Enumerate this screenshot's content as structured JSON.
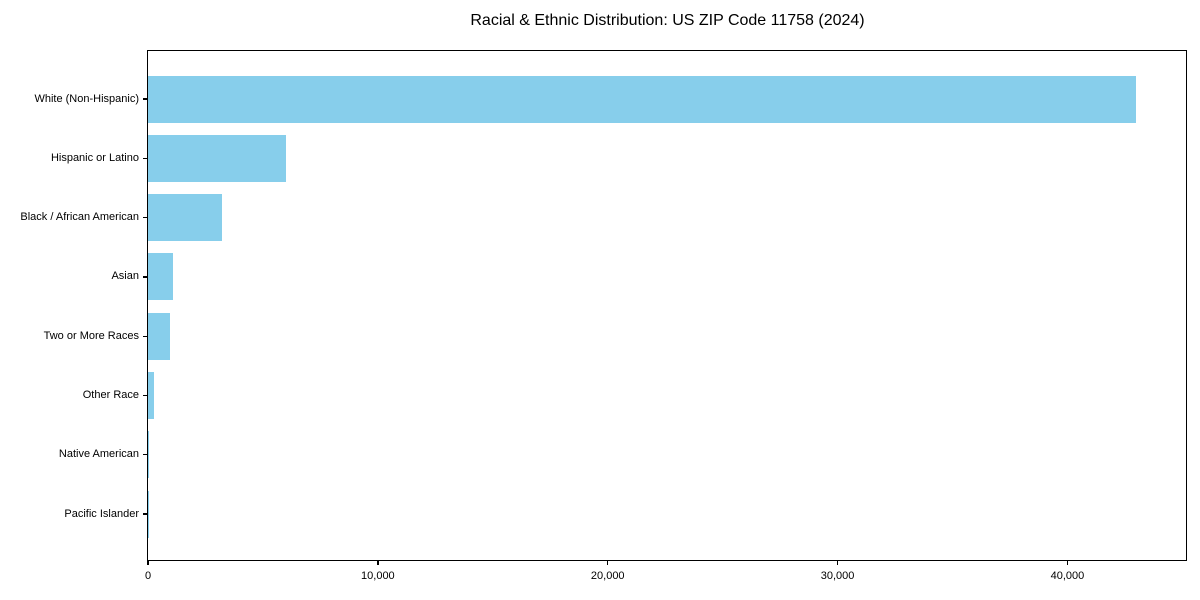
{
  "chart_data": {
    "type": "bar",
    "orientation": "horizontal",
    "title": "Racial & Ethnic Distribution: US ZIP Code 11758 (2024)",
    "categories": [
      "White (Non-Hispanic)",
      "Hispanic or Latino",
      "Black / African American",
      "Asian",
      "Two or More Races",
      "Other Race",
      "Native American",
      "Pacific Islander"
    ],
    "values": [
      43000,
      6000,
      3200,
      1100,
      950,
      250,
      50,
      20
    ],
    "xlabel": "",
    "ylabel": "",
    "xlim": [
      0,
      45200
    ],
    "x_ticks": [
      0,
      10000,
      20000,
      30000,
      40000
    ],
    "x_tick_labels": [
      "0",
      "10,000",
      "20,000",
      "30,000",
      "40,000"
    ],
    "bar_color": "#87CEEB",
    "axis_color": "#000000",
    "background": "#FFFFFF",
    "grid": false,
    "legend": false
  }
}
